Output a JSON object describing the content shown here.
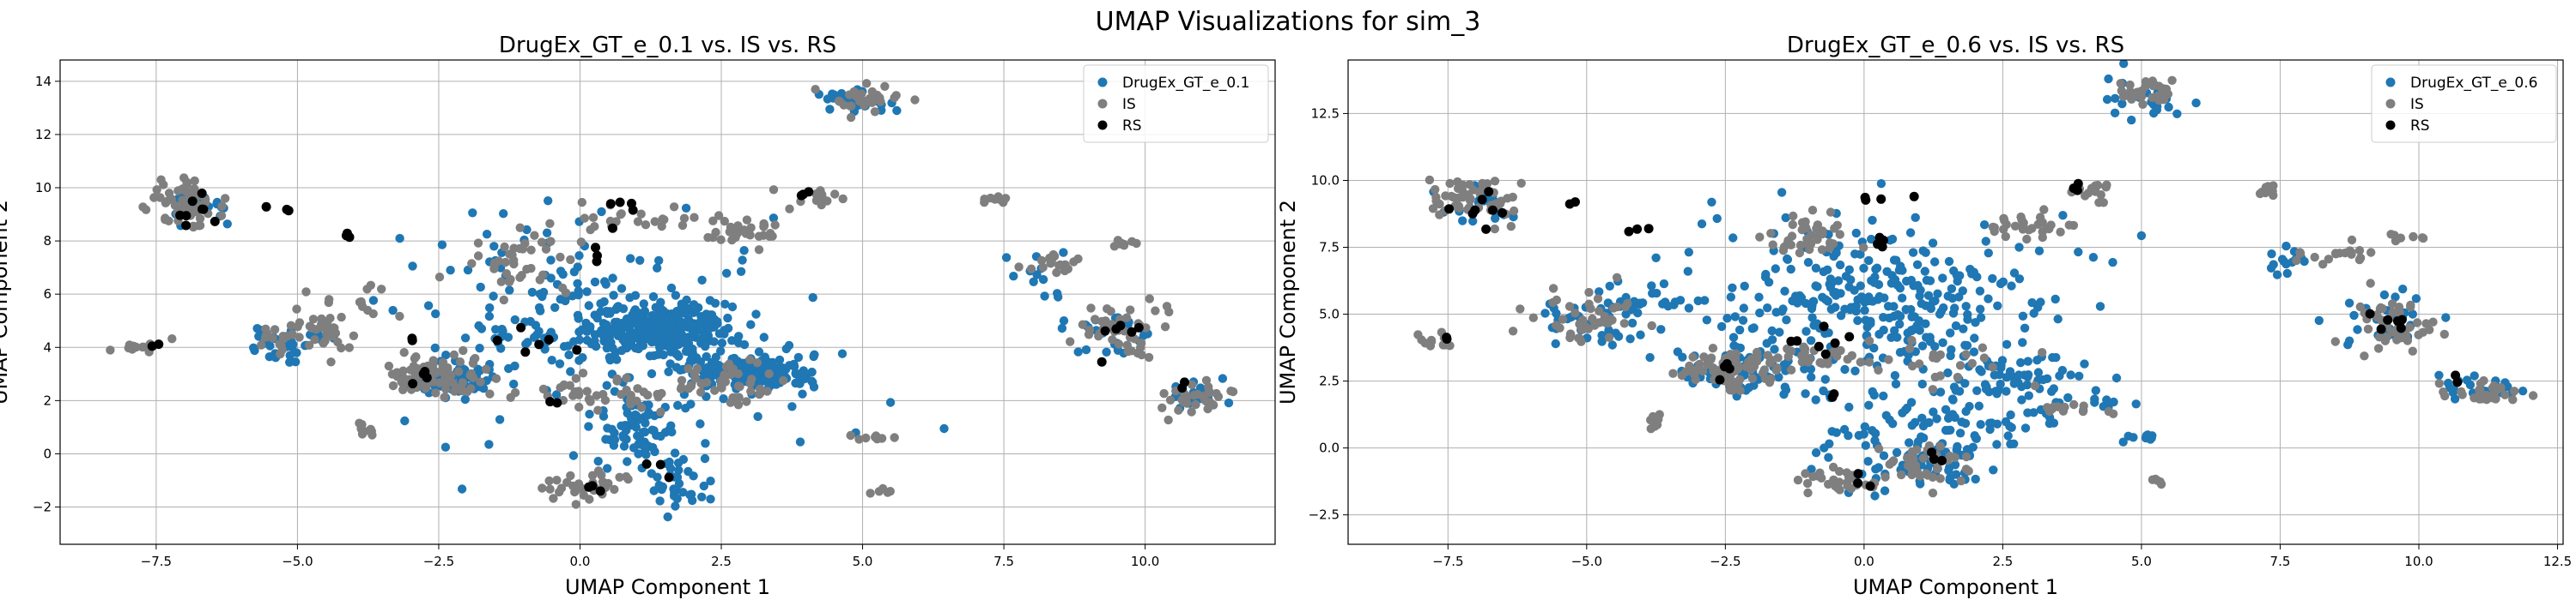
{
  "figure": {
    "suptitle": "UMAP Visualizations for sim_3"
  },
  "colors": {
    "generated": "#1f77b4",
    "IS": "#7f7f7f",
    "RS": "#000000",
    "grid": "#b0b0b0"
  },
  "chart_data": [
    {
      "type": "scatter",
      "title": "DrugEx_GT_e_0.1 vs. IS vs. RS",
      "xlabel": "UMAP Component 1",
      "ylabel": "UMAP Component 2",
      "xlim": [
        -9.2,
        12.3
      ],
      "ylim": [
        -3.4,
        14.8
      ],
      "xticks": [
        -7.5,
        -5.0,
        -2.5,
        0.0,
        2.5,
        5.0,
        7.5,
        10.0
      ],
      "xtick_labels": [
        "−7.5",
        "−5.0",
        "−2.5",
        "0.0",
        "2.5",
        "5.0",
        "7.5",
        "10.0"
      ],
      "yticks": [
        -2,
        0,
        2,
        4,
        6,
        8,
        10,
        12,
        14
      ],
      "ytick_labels": [
        "−2",
        "0",
        "2",
        "4",
        "6",
        "8",
        "10",
        "12",
        "14"
      ],
      "grid": true,
      "legend_position": "top-right",
      "legend": [
        "DrugEx_GT_e_0.1",
        "IS",
        "RS"
      ],
      "series": [
        {
          "name": "DrugEx_GT_e_0.1",
          "clusters": [
            {
              "cx": 1.5,
              "cy": 4.7,
              "sx": 0.6,
              "sy": 0.45,
              "n": 260
            },
            {
              "cx": 3.0,
              "cy": 3.0,
              "sx": 0.55,
              "sy": 0.3,
              "n": 200
            },
            {
              "cx": 0.0,
              "cy": 5.5,
              "sx": 1.3,
              "sy": 1.6,
              "n": 160
            },
            {
              "cx": -2.3,
              "cy": 2.8,
              "sx": 0.45,
              "sy": 0.35,
              "n": 60
            },
            {
              "cx": 1.0,
              "cy": 0.9,
              "sx": 0.35,
              "sy": 0.6,
              "n": 70
            },
            {
              "cx": 1.7,
              "cy": -1.0,
              "sx": 0.35,
              "sy": 0.55,
              "n": 35
            },
            {
              "cx": -5.2,
              "cy": 4.1,
              "sx": 0.45,
              "sy": 0.3,
              "n": 30
            },
            {
              "cx": -6.8,
              "cy": 9.3,
              "sx": 0.3,
              "sy": 0.3,
              "n": 20
            },
            {
              "cx": 4.8,
              "cy": 13.3,
              "sx": 0.35,
              "sy": 0.25,
              "n": 25
            },
            {
              "cx": 9.4,
              "cy": 4.6,
              "sx": 0.35,
              "sy": 0.45,
              "n": 25
            },
            {
              "cx": 10.8,
              "cy": 2.2,
              "sx": 0.4,
              "sy": 0.3,
              "n": 18
            },
            {
              "cx": 8.2,
              "cy": 6.8,
              "sx": 0.3,
              "sy": 0.4,
              "n": 14
            },
            {
              "cx": 1.2,
              "cy": 3.2,
              "sx": 2.0,
              "sy": 2.2,
              "n": 70
            }
          ]
        },
        {
          "name": "IS",
          "clusters": [
            {
              "cx": -7.0,
              "cy": 9.4,
              "sx": 0.35,
              "sy": 0.4,
              "n": 55
            },
            {
              "cx": -2.5,
              "cy": 2.9,
              "sx": 0.45,
              "sy": 0.35,
              "n": 80
            },
            {
              "cx": -5.0,
              "cy": 4.5,
              "sx": 0.5,
              "sy": 0.4,
              "n": 45
            },
            {
              "cx": 0.3,
              "cy": 2.2,
              "sx": 0.6,
              "sy": 0.35,
              "n": 40
            },
            {
              "cx": 2.6,
              "cy": 2.6,
              "sx": 0.5,
              "sy": 0.4,
              "n": 45
            },
            {
              "cx": -1.2,
              "cy": 7.2,
              "sx": 0.5,
              "sy": 0.6,
              "n": 40
            },
            {
              "cx": 5.1,
              "cy": 13.4,
              "sx": 0.3,
              "sy": 0.25,
              "n": 30
            },
            {
              "cx": 9.5,
              "cy": 4.6,
              "sx": 0.4,
              "sy": 0.5,
              "n": 45
            },
            {
              "cx": 10.9,
              "cy": 2.1,
              "sx": 0.4,
              "sy": 0.3,
              "n": 30
            },
            {
              "cx": -7.8,
              "cy": 4.0,
              "sx": 0.3,
              "sy": 0.15,
              "n": 12
            },
            {
              "cx": -3.8,
              "cy": 0.9,
              "sx": 0.1,
              "sy": 0.2,
              "n": 8
            },
            {
              "cx": 0.0,
              "cy": -1.2,
              "sx": 0.45,
              "sy": 0.3,
              "n": 35
            },
            {
              "cx": 2.9,
              "cy": 8.3,
              "sx": 0.4,
              "sy": 0.25,
              "n": 30
            },
            {
              "cx": 8.3,
              "cy": 7.2,
              "sx": 0.3,
              "sy": 0.2,
              "n": 18
            },
            {
              "cx": 7.3,
              "cy": 9.6,
              "sx": 0.1,
              "sy": 0.1,
              "n": 8
            },
            {
              "cx": 5.2,
              "cy": 0.6,
              "sx": 0.2,
              "sy": 0.1,
              "n": 8
            },
            {
              "cx": 4.2,
              "cy": 9.6,
              "sx": 0.3,
              "sy": 0.2,
              "n": 14
            },
            {
              "cx": 0.8,
              "cy": 8.9,
              "sx": 0.7,
              "sy": 0.3,
              "n": 25
            },
            {
              "cx": -4.0,
              "cy": 5.5,
              "sx": 0.5,
              "sy": 0.25,
              "n": 15
            },
            {
              "cx": 9.8,
              "cy": 7.9,
              "sx": 0.2,
              "sy": 0.1,
              "n": 8
            },
            {
              "cx": 5.3,
              "cy": -1.3,
              "sx": 0.1,
              "sy": 0.1,
              "n": 5
            }
          ]
        },
        {
          "name": "RS",
          "clusters": [
            {
              "cx": -6.9,
              "cy": 9.1,
              "sx": 0.25,
              "sy": 0.3,
              "n": 8
            },
            {
              "cx": -7.5,
              "cy": 4.1,
              "sx": 0.05,
              "sy": 0.05,
              "n": 2
            },
            {
              "cx": -5.3,
              "cy": 9.2,
              "sx": 0.1,
              "sy": 0.1,
              "n": 3
            },
            {
              "cx": -4.1,
              "cy": 8.2,
              "sx": 0.1,
              "sy": 0.1,
              "n": 3
            },
            {
              "cx": -2.6,
              "cy": 2.8,
              "sx": 0.2,
              "sy": 0.2,
              "n": 4
            },
            {
              "cx": -0.5,
              "cy": 4.1,
              "sx": 0.6,
              "sy": 0.3,
              "n": 6
            },
            {
              "cx": 0.3,
              "cy": 7.8,
              "sx": 0.2,
              "sy": 0.3,
              "n": 4
            },
            {
              "cx": 0.5,
              "cy": 9.3,
              "sx": 0.4,
              "sy": 0.1,
              "n": 4
            },
            {
              "cx": 3.9,
              "cy": 9.7,
              "sx": 0.1,
              "sy": 0.1,
              "n": 3
            },
            {
              "cx": 9.5,
              "cy": 4.5,
              "sx": 0.3,
              "sy": 0.4,
              "n": 6
            },
            {
              "cx": 10.7,
              "cy": 2.6,
              "sx": 0.1,
              "sy": 0.2,
              "n": 2
            },
            {
              "cx": 0.0,
              "cy": -1.3,
              "sx": 0.2,
              "sy": 0.15,
              "n": 3
            },
            {
              "cx": 1.4,
              "cy": -0.5,
              "sx": 0.2,
              "sy": 0.2,
              "n": 3
            },
            {
              "cx": -0.5,
              "cy": 1.9,
              "sx": 0.1,
              "sy": 0.1,
              "n": 2
            },
            {
              "cx": -3.0,
              "cy": 4.3,
              "sx": 0.1,
              "sy": 0.1,
              "n": 2
            }
          ]
        }
      ]
    },
    {
      "type": "scatter",
      "title": "DrugEx_GT_e_0.6 vs. IS vs. RS",
      "xlabel": "UMAP Component 1",
      "ylabel": "UMAP Component 2",
      "xlim": [
        -9.3,
        12.6
      ],
      "ylim": [
        -3.6,
        14.5
      ],
      "xticks": [
        -7.5,
        -5.0,
        -2.5,
        0.0,
        2.5,
        5.0,
        7.5,
        10.0,
        12.5
      ],
      "xtick_labels": [
        "−7.5",
        "−5.0",
        "−2.5",
        "0.0",
        "2.5",
        "5.0",
        "7.5",
        "10.0",
        "12.5"
      ],
      "yticks": [
        -2.5,
        0.0,
        2.5,
        5.0,
        7.5,
        10.0,
        12.5
      ],
      "ytick_labels": [
        "−2.5",
        "0.0",
        "2.5",
        "5.0",
        "7.5",
        "10.0",
        "12.5"
      ],
      "grid": true,
      "legend_position": "top-right",
      "legend": [
        "DrugEx_GT_e_0.6",
        "IS",
        "RS"
      ],
      "series": [
        {
          "name": "DrugEx_GT_e_0.6",
          "clusters": [
            {
              "cx": 0.3,
              "cy": 5.5,
              "sx": 1.6,
              "sy": 1.5,
              "n": 320
            },
            {
              "cx": 1.2,
              "cy": 0.2,
              "sx": 0.9,
              "sy": 1.0,
              "n": 140
            },
            {
              "cx": -2.3,
              "cy": 2.8,
              "sx": 0.6,
              "sy": 0.5,
              "n": 60
            },
            {
              "cx": 2.8,
              "cy": 2.8,
              "sx": 0.7,
              "sy": 0.6,
              "n": 60
            },
            {
              "cx": -5.0,
              "cy": 4.7,
              "sx": 0.6,
              "sy": 0.5,
              "n": 40
            },
            {
              "cx": -7.0,
              "cy": 9.0,
              "sx": 0.35,
              "sy": 0.4,
              "n": 20
            },
            {
              "cx": 9.3,
              "cy": 4.7,
              "sx": 0.4,
              "sy": 0.5,
              "n": 30
            },
            {
              "cx": 11.1,
              "cy": 2.2,
              "sx": 0.4,
              "sy": 0.25,
              "n": 20
            },
            {
              "cx": 5.0,
              "cy": 13.0,
              "sx": 0.4,
              "sy": 0.4,
              "n": 25
            },
            {
              "cx": 7.6,
              "cy": 7.0,
              "sx": 0.3,
              "sy": 0.3,
              "n": 15
            },
            {
              "cx": 3.8,
              "cy": 1.6,
              "sx": 0.5,
              "sy": 0.15,
              "n": 15
            },
            {
              "cx": 5.0,
              "cy": 0.4,
              "sx": 0.3,
              "sy": 0.15,
              "n": 10
            },
            {
              "cx": -3.9,
              "cy": 5.6,
              "sx": 0.6,
              "sy": 0.3,
              "n": 25
            }
          ]
        },
        {
          "name": "IS",
          "clusters": [
            {
              "cx": -7.0,
              "cy": 9.4,
              "sx": 0.35,
              "sy": 0.4,
              "n": 55
            },
            {
              "cx": -2.5,
              "cy": 2.9,
              "sx": 0.45,
              "sy": 0.35,
              "n": 80
            },
            {
              "cx": -5.0,
              "cy": 4.8,
              "sx": 0.5,
              "sy": 0.5,
              "n": 45
            },
            {
              "cx": -1.0,
              "cy": 3.5,
              "sx": 0.6,
              "sy": 0.3,
              "n": 30
            },
            {
              "cx": 1.2,
              "cy": -0.5,
              "sx": 0.4,
              "sy": 0.4,
              "n": 40
            },
            {
              "cx": -0.3,
              "cy": -1.2,
              "sx": 0.4,
              "sy": 0.3,
              "n": 30
            },
            {
              "cx": -1.0,
              "cy": 8.0,
              "sx": 0.5,
              "sy": 0.4,
              "n": 40
            },
            {
              "cx": 3.0,
              "cy": 8.2,
              "sx": 0.4,
              "sy": 0.3,
              "n": 30
            },
            {
              "cx": 5.1,
              "cy": 13.4,
              "sx": 0.3,
              "sy": 0.25,
              "n": 30
            },
            {
              "cx": 9.5,
              "cy": 4.6,
              "sx": 0.4,
              "sy": 0.5,
              "n": 45
            },
            {
              "cx": 11.1,
              "cy": 2.1,
              "sx": 0.4,
              "sy": 0.2,
              "n": 30
            },
            {
              "cx": -7.8,
              "cy": 4.0,
              "sx": 0.3,
              "sy": 0.15,
              "n": 12
            },
            {
              "cx": -3.8,
              "cy": 0.9,
              "sx": 0.1,
              "sy": 0.2,
              "n": 8
            },
            {
              "cx": 8.4,
              "cy": 7.2,
              "sx": 0.4,
              "sy": 0.2,
              "n": 18
            },
            {
              "cx": 7.3,
              "cy": 9.6,
              "sx": 0.1,
              "sy": 0.1,
              "n": 8
            },
            {
              "cx": 3.6,
              "cy": 1.5,
              "sx": 0.4,
              "sy": 0.1,
              "n": 12
            },
            {
              "cx": 9.8,
              "cy": 7.9,
              "sx": 0.2,
              "sy": 0.1,
              "n": 8
            },
            {
              "cx": 5.3,
              "cy": -1.3,
              "sx": 0.1,
              "sy": 0.1,
              "n": 5
            },
            {
              "cx": 4.2,
              "cy": 9.6,
              "sx": 0.3,
              "sy": 0.2,
              "n": 14
            },
            {
              "cx": 1.5,
              "cy": 3.2,
              "sx": 0.8,
              "sy": 0.5,
              "n": 25
            }
          ]
        },
        {
          "name": "RS",
          "clusters": [
            {
              "cx": -6.9,
              "cy": 9.1,
              "sx": 0.25,
              "sy": 0.3,
              "n": 8
            },
            {
              "cx": -7.5,
              "cy": 4.1,
              "sx": 0.05,
              "sy": 0.05,
              "n": 2
            },
            {
              "cx": -5.3,
              "cy": 9.2,
              "sx": 0.1,
              "sy": 0.1,
              "n": 2
            },
            {
              "cx": -4.1,
              "cy": 8.2,
              "sx": 0.1,
              "sy": 0.1,
              "n": 3
            },
            {
              "cx": -2.6,
              "cy": 2.8,
              "sx": 0.2,
              "sy": 0.2,
              "n": 4
            },
            {
              "cx": -0.5,
              "cy": 3.9,
              "sx": 0.5,
              "sy": 0.4,
              "n": 7
            },
            {
              "cx": 0.3,
              "cy": 7.8,
              "sx": 0.2,
              "sy": 0.3,
              "n": 4
            },
            {
              "cx": 0.5,
              "cy": 9.3,
              "sx": 0.4,
              "sy": 0.1,
              "n": 4
            },
            {
              "cx": 3.9,
              "cy": 9.7,
              "sx": 0.1,
              "sy": 0.1,
              "n": 3
            },
            {
              "cx": 9.5,
              "cy": 4.5,
              "sx": 0.3,
              "sy": 0.4,
              "n": 6
            },
            {
              "cx": 10.7,
              "cy": 2.6,
              "sx": 0.1,
              "sy": 0.2,
              "n": 2
            },
            {
              "cx": -0.1,
              "cy": -1.3,
              "sx": 0.2,
              "sy": 0.15,
              "n": 3
            },
            {
              "cx": 1.4,
              "cy": -0.4,
              "sx": 0.2,
              "sy": 0.2,
              "n": 3
            },
            {
              "cx": -0.5,
              "cy": 1.9,
              "sx": 0.1,
              "sy": 0.1,
              "n": 2
            }
          ]
        }
      ]
    }
  ]
}
